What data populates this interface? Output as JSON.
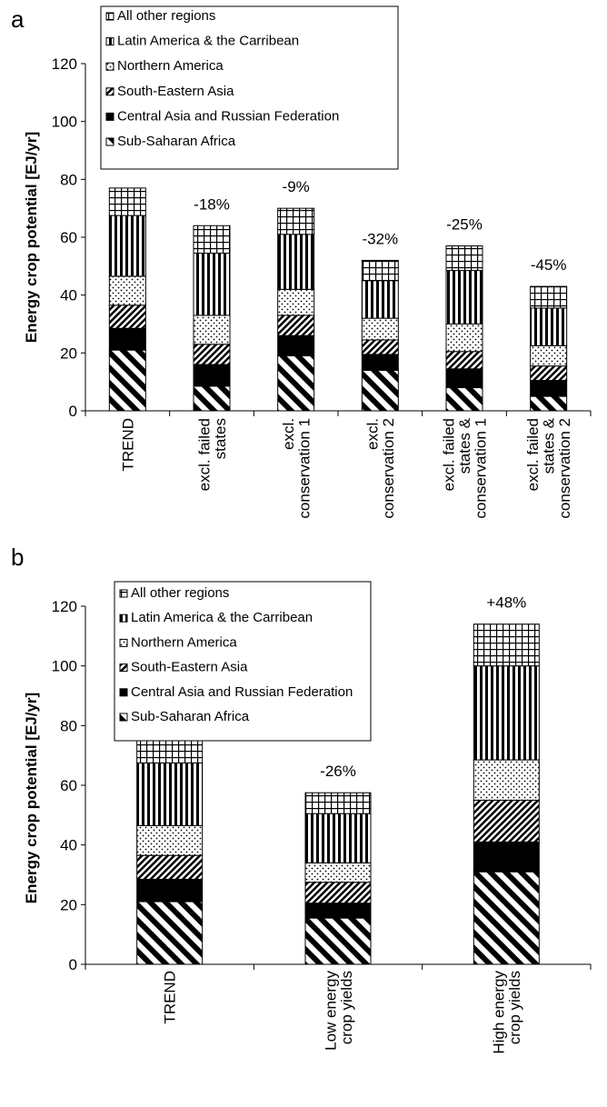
{
  "chart_data": [
    {
      "panel_label": "a",
      "type": "bar",
      "stacked": true,
      "ylabel": "Energy crop potential [EJ/yr]",
      "ylim": [
        0,
        120
      ],
      "yticks": [
        0,
        20,
        40,
        60,
        80,
        100,
        120
      ],
      "grid": false,
      "legend_position": "top-left",
      "categories": [
        "TREND",
        "excl. failed states",
        "excl. conservation 1",
        "excl. conservation 2",
        "excl. failed states & conservation 1",
        "excl. failed states & conservation 2"
      ],
      "category_lines": [
        [
          "TREND"
        ],
        [
          "excl. failed",
          "states"
        ],
        [
          "excl.",
          "conservation 1"
        ],
        [
          "excl.",
          "conservation 2"
        ],
        [
          "excl. failed",
          "states &",
          "conservation 1"
        ],
        [
          "excl. failed",
          "states &",
          "conservation 2"
        ]
      ],
      "annotations": [
        "",
        "-18%",
        "-9%",
        "-32%",
        "-25%",
        "-45%"
      ],
      "series": [
        {
          "name": "Sub-Saharan Africa",
          "pattern": "diag",
          "values": [
            21,
            8.5,
            19,
            14,
            8,
            5
          ]
        },
        {
          "name": "Central Asia and Russian Federation",
          "pattern": "solid",
          "values": [
            7.5,
            7.5,
            7,
            5.5,
            6.5,
            5.5
          ]
        },
        {
          "name": "South-Eastern Asia",
          "pattern": "diag-fine",
          "values": [
            8,
            7,
            7,
            5,
            6,
            5
          ]
        },
        {
          "name": "Northern America",
          "pattern": "dots",
          "values": [
            10,
            10,
            9,
            7.5,
            9.5,
            7
          ]
        },
        {
          "name": "Latin America & the Carribean",
          "pattern": "vstripes",
          "values": [
            21,
            21.5,
            19,
            13,
            18.5,
            13
          ]
        },
        {
          "name": "All other regions",
          "pattern": "grid",
          "values": [
            9.5,
            9.5,
            9,
            7,
            8.5,
            7.5
          ]
        }
      ],
      "legend_order": [
        "All other regions",
        "Latin America & the Carribean",
        "Northern America",
        "South-Eastern Asia",
        "Central Asia and Russian Federation",
        "Sub-Saharan Africa"
      ]
    },
    {
      "panel_label": "b",
      "type": "bar",
      "stacked": true,
      "ylabel": "Energy crop potential [EJ/yr]",
      "ylim": [
        0,
        120
      ],
      "yticks": [
        0,
        20,
        40,
        60,
        80,
        100,
        120
      ],
      "grid": false,
      "legend_position": "top-left",
      "categories": [
        "TREND",
        "Low energy crop yields",
        "High energy crop yields"
      ],
      "category_lines": [
        [
          "TREND"
        ],
        [
          "Low energy",
          "crop yields"
        ],
        [
          "High energy",
          "crop yields"
        ]
      ],
      "annotations": [
        "",
        "-26%",
        "+48%"
      ],
      "series": [
        {
          "name": "Sub-Saharan Africa",
          "pattern": "diag",
          "values": [
            21,
            15.5,
            31
          ]
        },
        {
          "name": "Central Asia and Russian Federation",
          "pattern": "solid",
          "values": [
            7.5,
            5,
            10
          ]
        },
        {
          "name": "South-Eastern Asia",
          "pattern": "diag-fine",
          "values": [
            8,
            7,
            14
          ]
        },
        {
          "name": "Northern America",
          "pattern": "dots",
          "values": [
            10,
            6.5,
            13.5
          ]
        },
        {
          "name": "Latin America & the Carribean",
          "pattern": "vstripes",
          "values": [
            21,
            16.5,
            31.5
          ]
        },
        {
          "name": "All other regions",
          "pattern": "grid",
          "values": [
            9.5,
            7,
            14
          ]
        }
      ],
      "legend_order": [
        "All other regions",
        "Latin America & the Carribean",
        "Northern America",
        "South-Eastern Asia",
        "Central Asia and Russian Federation",
        "Sub-Saharan Africa"
      ]
    }
  ]
}
